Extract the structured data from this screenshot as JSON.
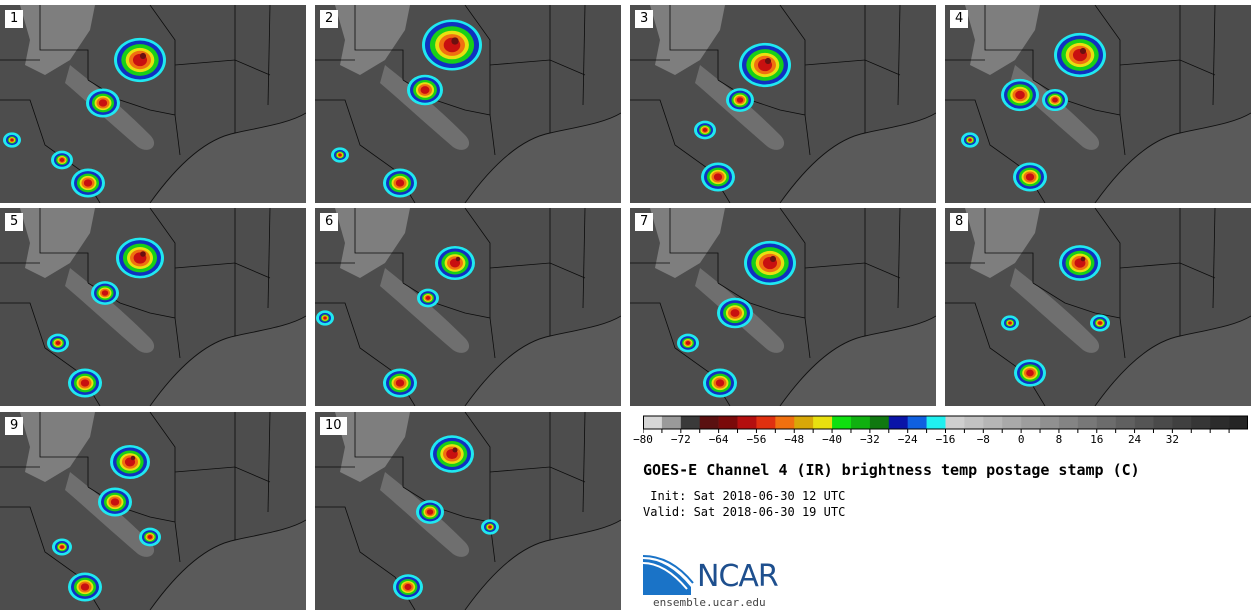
{
  "panels": [
    {
      "label": "1"
    },
    {
      "label": "2"
    },
    {
      "label": "3"
    },
    {
      "label": "4"
    },
    {
      "label": "5"
    },
    {
      "label": "6"
    },
    {
      "label": "7"
    },
    {
      "label": "8"
    },
    {
      "label": "9"
    },
    {
      "label": "10"
    }
  ],
  "colorbar": {
    "colors": [
      "#d6d6d6",
      "#9a9a9a",
      "#3a3a3a",
      "#5a1010",
      "#7a0a0a",
      "#b40f0f",
      "#e03010",
      "#f07010",
      "#d8a808",
      "#e8e010",
      "#10e010",
      "#10b010",
      "#107810",
      "#0a14a8",
      "#1060e0",
      "#20f0f0",
      "#cfcfcf",
      "#c2c2c2",
      "#b6b6b6",
      "#a9a9a9",
      "#9d9d9d",
      "#909090",
      "#848484",
      "#787878",
      "#6c6c6c",
      "#606060",
      "#555555",
      "#4a4a4a",
      "#404040",
      "#363636",
      "#2c2c2c",
      "#242424"
    ],
    "ticks": [
      "−80",
      "−72",
      "−64",
      "−56",
      "−48",
      "−40",
      "−32",
      "−24",
      "−16",
      "−8",
      "0",
      "8",
      "16",
      "24",
      "32"
    ]
  },
  "title": "GOES-E Channel 4 (IR) brightness temp postage stamp (C)",
  "init": " Init: Sat 2018-06-30 12 UTC",
  "valid": "Valid: Sat 2018-06-30 19 UTC",
  "logo_text": "NCAR",
  "url": "ensemble.ucar.edu"
}
